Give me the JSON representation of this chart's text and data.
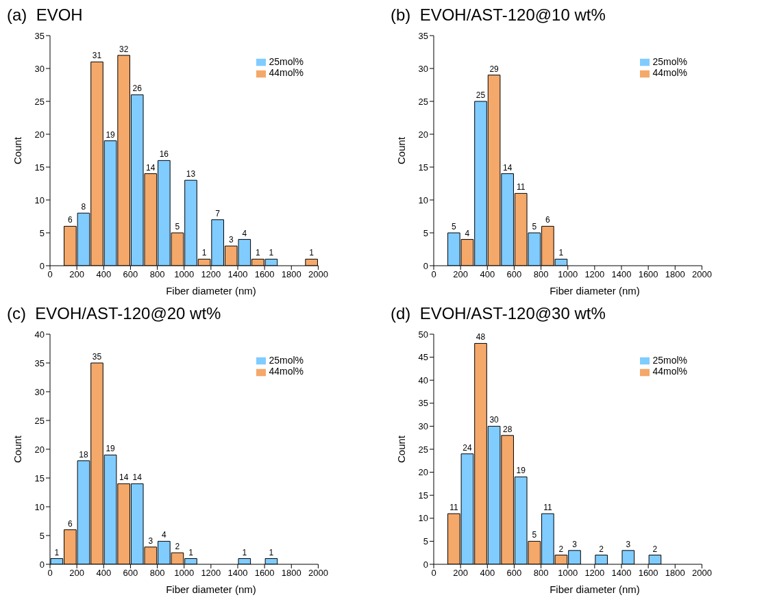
{
  "chart_data": [
    {
      "type": "histogram",
      "title": "(a)  EVOH",
      "xlabel": "Fiber diameter (nm)",
      "ylabel": "Count",
      "bins": [
        0,
        100,
        200,
        300,
        400,
        500,
        600,
        700,
        800,
        900,
        1000,
        1100,
        1200,
        1300,
        1400,
        1500,
        1600,
        1700,
        1800,
        1900,
        2000
      ],
      "xlim": [
        0,
        2000
      ],
      "xticks": [
        0,
        200,
        400,
        600,
        800,
        1000,
        1200,
        1400,
        1600,
        1800,
        2000
      ],
      "ylim": [
        0,
        35
      ],
      "yticks": [
        0,
        5,
        10,
        15,
        20,
        25,
        30,
        35
      ],
      "data_labels": true,
      "legend": "top right",
      "series": [
        {
          "name": "25mol%",
          "color": "#80ccff",
          "values": [
            null,
            null,
            8,
            null,
            19,
            null,
            26,
            null,
            16,
            null,
            13,
            null,
            7,
            null,
            4,
            null,
            1,
            null,
            null,
            null
          ]
        },
        {
          "name": "44mol%",
          "color": "#f4a86a",
          "values": [
            null,
            6,
            null,
            31,
            null,
            32,
            null,
            14,
            null,
            5,
            null,
            1,
            null,
            3,
            null,
            1,
            null,
            null,
            null,
            1
          ]
        }
      ]
    },
    {
      "type": "histogram",
      "title": "(b)  EVOH/AST-120@10 wt%",
      "xlabel": "Fiber diameter (nm)",
      "ylabel": "Count",
      "bins": [
        0,
        100,
        200,
        300,
        400,
        500,
        600,
        700,
        800,
        900,
        1000,
        1100,
        1200,
        1300,
        1400,
        1500,
        1600,
        1700,
        1800,
        1900,
        2000
      ],
      "xlim": [
        0,
        2000
      ],
      "xticks": [
        0,
        200,
        400,
        600,
        800,
        1000,
        1200,
        1400,
        1600,
        1800,
        2000
      ],
      "ylim": [
        0,
        35
      ],
      "yticks": [
        0,
        5,
        10,
        15,
        20,
        25,
        30,
        35
      ],
      "data_labels": true,
      "legend": "top right",
      "series": [
        {
          "name": "25mol%",
          "color": "#80ccff",
          "values": [
            null,
            5,
            null,
            25,
            null,
            14,
            null,
            5,
            null,
            1,
            null,
            null,
            null,
            null,
            null,
            null,
            null,
            null,
            null,
            null
          ]
        },
        {
          "name": "44mol%",
          "color": "#f4a86a",
          "values": [
            null,
            null,
            4,
            null,
            29,
            null,
            11,
            null,
            6,
            null,
            null,
            null,
            null,
            null,
            null,
            null,
            null,
            null,
            null,
            null
          ]
        }
      ]
    },
    {
      "type": "histogram",
      "title": "(c)  EVOH/AST-120@20 wt%",
      "xlabel": "Fiber diameter (nm)",
      "ylabel": "Count",
      "bins": [
        0,
        100,
        200,
        300,
        400,
        500,
        600,
        700,
        800,
        900,
        1000,
        1100,
        1200,
        1300,
        1400,
        1500,
        1600,
        1700,
        1800,
        1900,
        2000
      ],
      "xlim": [
        0,
        2000
      ],
      "xticks": [
        0,
        200,
        400,
        600,
        800,
        1000,
        1200,
        1400,
        1600,
        1800,
        2000
      ],
      "ylim": [
        0,
        40
      ],
      "yticks": [
        0,
        5,
        10,
        15,
        20,
        25,
        30,
        35,
        40
      ],
      "data_labels": true,
      "legend": "top right",
      "series": [
        {
          "name": "25mol%",
          "color": "#80ccff",
          "values": [
            1,
            null,
            18,
            null,
            19,
            null,
            14,
            null,
            4,
            null,
            1,
            null,
            null,
            null,
            1,
            null,
            1,
            null,
            null,
            null
          ]
        },
        {
          "name": "44mol%",
          "color": "#f4a86a",
          "values": [
            null,
            6,
            null,
            35,
            null,
            14,
            null,
            3,
            null,
            2,
            null,
            null,
            null,
            null,
            null,
            null,
            null,
            null,
            null,
            null
          ]
        }
      ]
    },
    {
      "type": "histogram",
      "title": "(d)  EVOH/AST-120@30 wt%",
      "xlabel": "Fiber diameter (nm)",
      "ylabel": "Count",
      "bins": [
        0,
        100,
        200,
        300,
        400,
        500,
        600,
        700,
        800,
        900,
        1000,
        1100,
        1200,
        1300,
        1400,
        1500,
        1600,
        1700,
        1800,
        1900,
        2000
      ],
      "xlim": [
        0,
        2000
      ],
      "xticks": [
        0,
        200,
        400,
        600,
        800,
        1000,
        1200,
        1400,
        1600,
        1800,
        2000
      ],
      "ylim": [
        0,
        50
      ],
      "yticks": [
        0,
        5,
        10,
        15,
        20,
        25,
        30,
        35,
        40,
        45,
        50
      ],
      "data_labels": true,
      "legend": "top right",
      "series": [
        {
          "name": "25mol%",
          "color": "#80ccff",
          "values": [
            null,
            null,
            24,
            null,
            30,
            null,
            19,
            null,
            11,
            null,
            3,
            null,
            2,
            null,
            3,
            null,
            2,
            null,
            null,
            null
          ]
        },
        {
          "name": "44mol%",
          "color": "#f4a86a",
          "values": [
            null,
            11,
            null,
            48,
            null,
            28,
            null,
            5,
            null,
            2,
            null,
            null,
            null,
            null,
            null,
            null,
            null,
            null,
            null,
            null
          ]
        }
      ]
    }
  ]
}
